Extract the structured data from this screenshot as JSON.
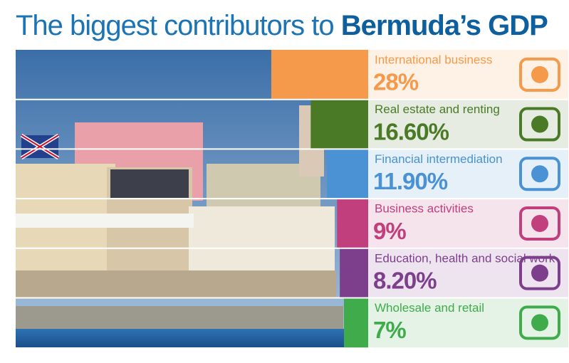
{
  "chart_data": {
    "type": "bar",
    "title": {
      "text": "The biggest contributors to",
      "emphasis": "Bermuda’s GDP"
    },
    "categories": [
      "International business",
      "Real estate and renting",
      "Financial intermediation",
      "Business activities",
      "Education, health and social work",
      "Wholesale and retail"
    ],
    "values": [
      28,
      16.6,
      11.9,
      9,
      8.2,
      7
    ],
    "value_labels": [
      "28%",
      "16.60%",
      "11.90%",
      "9%",
      "8.20%",
      "7%"
    ],
    "colors": [
      "#f5994a",
      "#4b7a27",
      "#4a92d4",
      "#c13f7c",
      "#7d3f8c",
      "#3fab4b"
    ]
  }
}
